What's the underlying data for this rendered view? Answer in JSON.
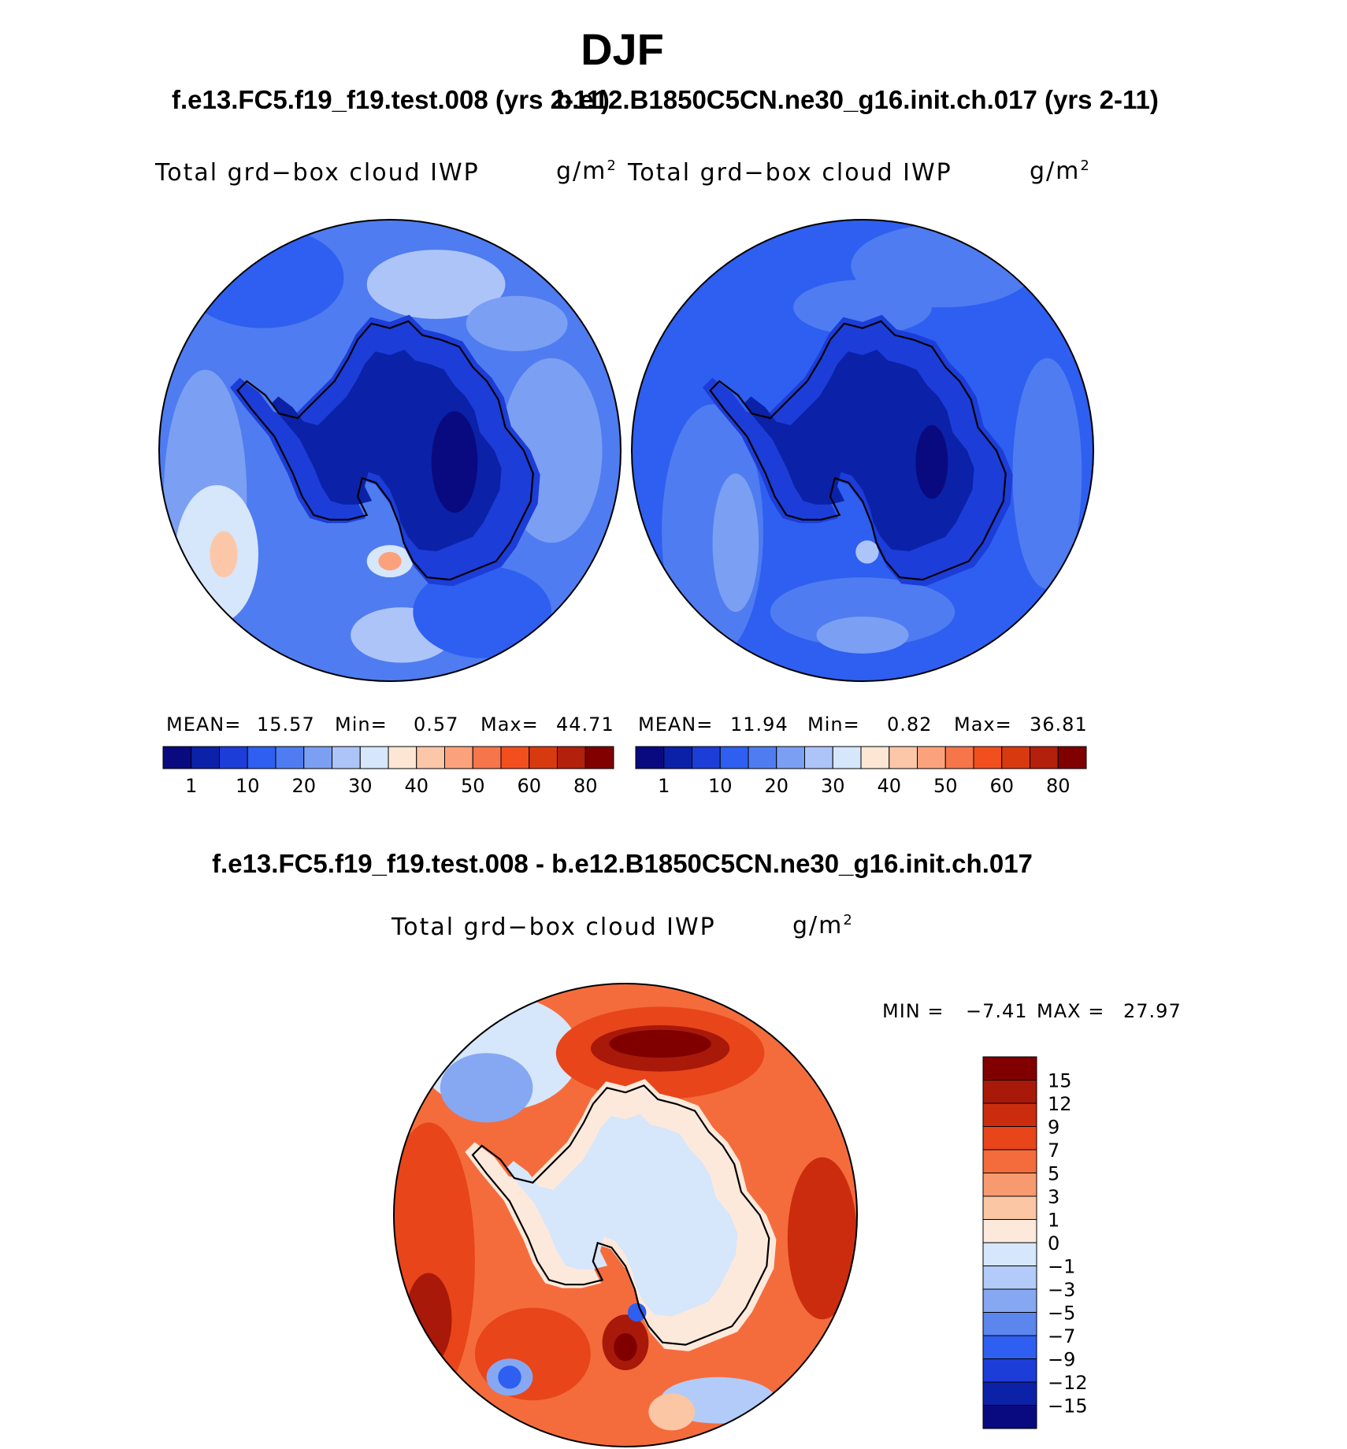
{
  "title": "DJF",
  "panels": {
    "case1": {
      "title": "f.e13.FC5.f19_f19.test.008 (yrs 2-11)",
      "variable": "Total grd−box cloud IWP",
      "units": "g/m",
      "units_exp": "2",
      "stats": {
        "mean_label": "MEAN=",
        "mean": "15.57",
        "min_label": "Min=",
        "min": "0.57",
        "max_label": "Max=",
        "max": "44.71"
      }
    },
    "case2": {
      "title": "b.e12.B1850C5CN.ne30_g16.init.ch.017 (yrs 2-11)",
      "variable": "Total grd−box cloud IWP",
      "units": "g/m",
      "units_exp": "2",
      "stats": {
        "mean_label": "MEAN=",
        "mean": "11.94",
        "min_label": "Min=",
        "min": "0.82",
        "max_label": "Max=",
        "max": "36.81"
      }
    },
    "diff": {
      "title": "f.e13.FC5.f19_f19.test.008 - b.e12.B1850C5CN.ne30_g16.init.ch.017",
      "variable": "Total grd−box cloud IWP",
      "units": "g/m",
      "units_exp": "2",
      "stats": {
        "min_label": "MIN =",
        "min": "−7.41",
        "max_label": "MAX =",
        "max": "27.97"
      }
    }
  },
  "chart_data": [
    {
      "type": "heatmap",
      "projection": "south-polar-stereographic",
      "title": "f.e13.FC5.f19_f19.test.008 (yrs 2-11)",
      "variable": "Total grd-box cloud IWP",
      "units": "g/m2",
      "mean": 15.57,
      "min": 0.57,
      "max": 44.71,
      "colorbar": {
        "orientation": "horizontal",
        "tick_labels": [
          "1",
          "10",
          "20",
          "30",
          "40",
          "50",
          "60",
          "80"
        ],
        "colors": [
          "#0a0a80",
          "#0b22a8",
          "#1c3dd8",
          "#2e5ff0",
          "#4f7cf0",
          "#7b9ff2",
          "#adc4f8",
          "#d6e6fb",
          "#fde6d4",
          "#fcc7a8",
          "#fba27c",
          "#f6754b",
          "#f24f1e",
          "#d83a10",
          "#b3200b",
          "#800000"
        ]
      }
    },
    {
      "type": "heatmap",
      "projection": "south-polar-stereographic",
      "title": "b.e12.B1850C5CN.ne30_g16.init.ch.017 (yrs 2-11)",
      "variable": "Total grd-box cloud IWP",
      "units": "g/m2",
      "mean": 11.94,
      "min": 0.82,
      "max": 36.81,
      "colorbar": {
        "orientation": "horizontal",
        "tick_labels": [
          "1",
          "10",
          "20",
          "30",
          "40",
          "50",
          "60",
          "80"
        ],
        "colors": [
          "#0a0a80",
          "#0b22a8",
          "#1c3dd8",
          "#2e5ff0",
          "#4f7cf0",
          "#7b9ff2",
          "#adc4f8",
          "#d6e6fb",
          "#fde6d4",
          "#fcc7a8",
          "#fba27c",
          "#f6754b",
          "#f24f1e",
          "#d83a10",
          "#b3200b",
          "#800000"
        ]
      }
    },
    {
      "type": "heatmap",
      "projection": "south-polar-stereographic",
      "title": "f.e13.FC5.f19_f19.test.008 - b.e12.B1850C5CN.ne30_g16.init.ch.017",
      "variable": "Total grd-box cloud IWP",
      "units": "g/m2",
      "min": -7.41,
      "max": 27.97,
      "colorbar": {
        "orientation": "vertical",
        "tick_labels": [
          "15",
          "12",
          "9",
          "7",
          "5",
          "3",
          "1",
          "0",
          "−1",
          "−3",
          "−5",
          "−7",
          "−9",
          "−12",
          "−15"
        ],
        "colors": [
          "#800000",
          "#a8190a",
          "#cc2c0e",
          "#e8451a",
          "#f56c3c",
          "#f89a70",
          "#fbc6a4",
          "#fde9dc",
          "#d6e6fb",
          "#b3cbf8",
          "#86a8f2",
          "#5c85ee",
          "#2f5ff0",
          "#1c3dd8",
          "#0b22a8",
          "#0a0a80"
        ]
      }
    }
  ]
}
